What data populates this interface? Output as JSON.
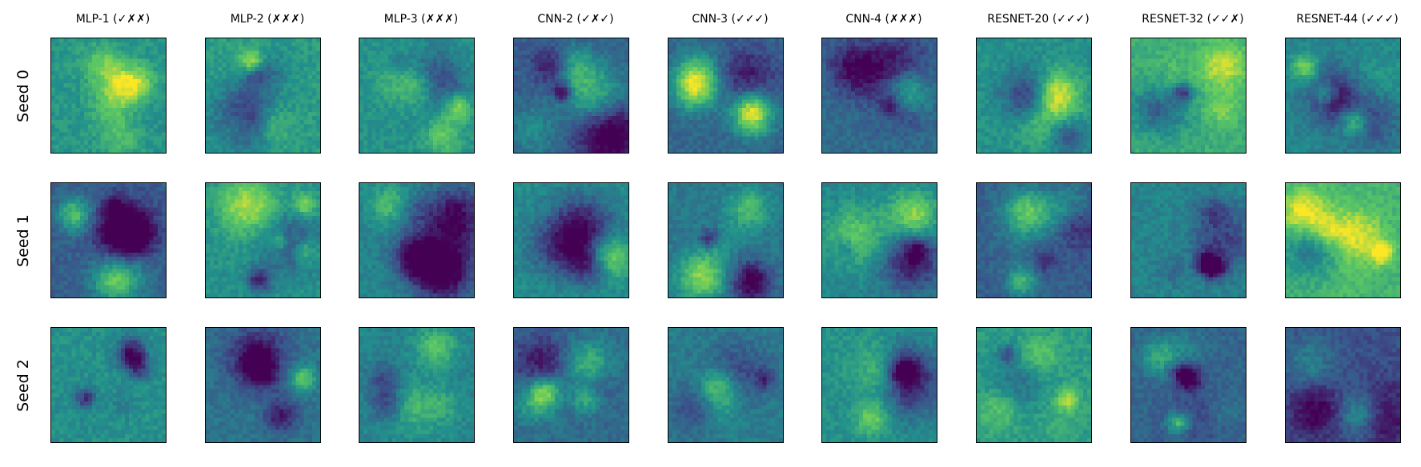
{
  "columns": [
    {
      "title": "MLP-1 (✓✗✗)"
    },
    {
      "title": "MLP-2 (✗✗✗)"
    },
    {
      "title": "MLP-3 (✗✗✗)"
    },
    {
      "title": "CNN-2 (✓✗✓)"
    },
    {
      "title": "CNN-3 (✓✓✓)"
    },
    {
      "title": "CNN-4 (✗✗✗)"
    },
    {
      "title": "RESNET-20 (✓✓✓)"
    },
    {
      "title": "RESNET-32 (✓✓✗)"
    },
    {
      "title": "RESNET-44 (✓✓✓)"
    }
  ],
  "rows": [
    {
      "label": "Seed 0"
    },
    {
      "label": "Seed 1"
    },
    {
      "label": "Seed 2"
    }
  ],
  "colormap": "viridis",
  "palette": [
    "#440154",
    "#3b528b",
    "#21918c",
    "#5ec962",
    "#fde725"
  ]
}
